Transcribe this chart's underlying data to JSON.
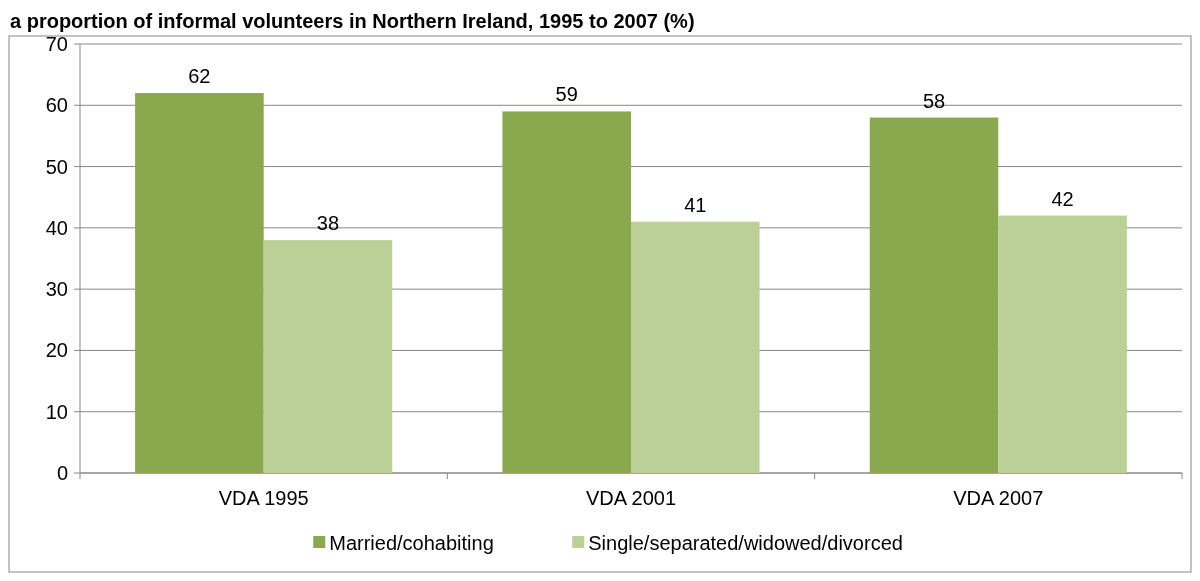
{
  "chart_data": {
    "type": "bar",
    "title": "a proportion of informal volunteers in Northern Ireland, 1995 to 2007 (%)",
    "categories": [
      "VDA 1995",
      "VDA 2001",
      "VDA 2007"
    ],
    "series": [
      {
        "name": "Married/cohabiting",
        "color": "#8aa84e",
        "values": [
          62,
          59,
          58
        ]
      },
      {
        "name": "Single/separated/widowed/divorced",
        "color": "#bad096",
        "values": [
          38,
          41,
          42
        ]
      }
    ],
    "ylim": [
      0,
      70
    ],
    "yticks": [
      0,
      10,
      20,
      30,
      40,
      50,
      60,
      70
    ],
    "grid": "y",
    "legend": "bottom",
    "data_labels": true
  }
}
